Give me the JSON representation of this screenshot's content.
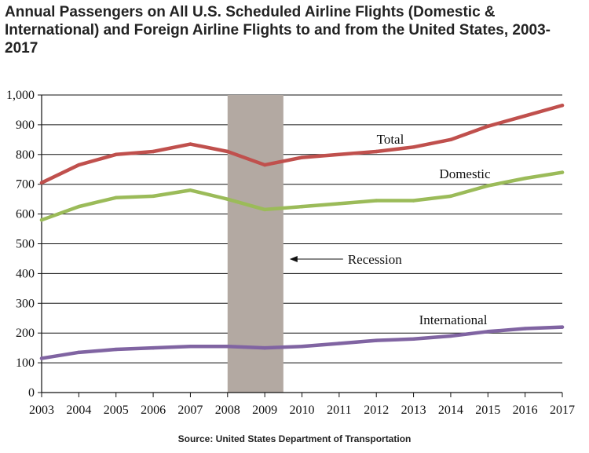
{
  "title": "Annual Passengers on All U.S. Scheduled Airline Flights (Domestic & International) and Foreign Airline Flights to and from the United States, 2003-2017",
  "source": "Source: United States Department of Transportation",
  "chart_data": {
    "type": "line",
    "title": "Annual Passengers on All U.S. Scheduled Airline Flights (Domestic & International) and Foreign Airline Flights to and from the United States, 2003-2017",
    "xlabel": "",
    "ylabel": "",
    "x": [
      2003,
      2004,
      2005,
      2006,
      2007,
      2008,
      2009,
      2010,
      2011,
      2012,
      2013,
      2014,
      2015,
      2016,
      2017
    ],
    "x_tick_labels": [
      "2003",
      "2004",
      "2005",
      "2006",
      "2007",
      "2008",
      "2009",
      "2010",
      "2011",
      "2012",
      "2013",
      "2014",
      "2015",
      "2016",
      "2017"
    ],
    "ylim": [
      0,
      1000
    ],
    "y_tick_values": [
      0,
      100,
      200,
      300,
      400,
      500,
      600,
      700,
      800,
      900,
      1000
    ],
    "y_tick_labels": [
      "0",
      "100",
      "200",
      "300",
      "400",
      "500",
      "600",
      "700",
      "800",
      "900",
      "1,000"
    ],
    "grid": "horizontal",
    "series": [
      {
        "name": "Total",
        "color": "#c0504d",
        "values": [
          705,
          765,
          800,
          810,
          835,
          810,
          765,
          790,
          800,
          810,
          825,
          850,
          895,
          930,
          965
        ]
      },
      {
        "name": "Domestic",
        "color": "#9bbb59",
        "values": [
          580,
          625,
          655,
          660,
          680,
          650,
          615,
          625,
          635,
          645,
          645,
          660,
          695,
          720,
          740
        ]
      },
      {
        "name": "International",
        "color": "#8064a2",
        "values": [
          115,
          135,
          145,
          150,
          155,
          155,
          150,
          155,
          165,
          175,
          180,
          190,
          205,
          215,
          220
        ]
      }
    ],
    "shaded_region": {
      "from": 2008,
      "to": 2009.5,
      "color": "#b3a9a2"
    },
    "annotations": [
      {
        "text": "Total",
        "series": "Total"
      },
      {
        "text": "Domestic",
        "series": "Domestic"
      },
      {
        "text": "International",
        "series": "International"
      },
      {
        "text": "Recession",
        "arrow": "left",
        "points_to": "shaded_region"
      }
    ]
  }
}
